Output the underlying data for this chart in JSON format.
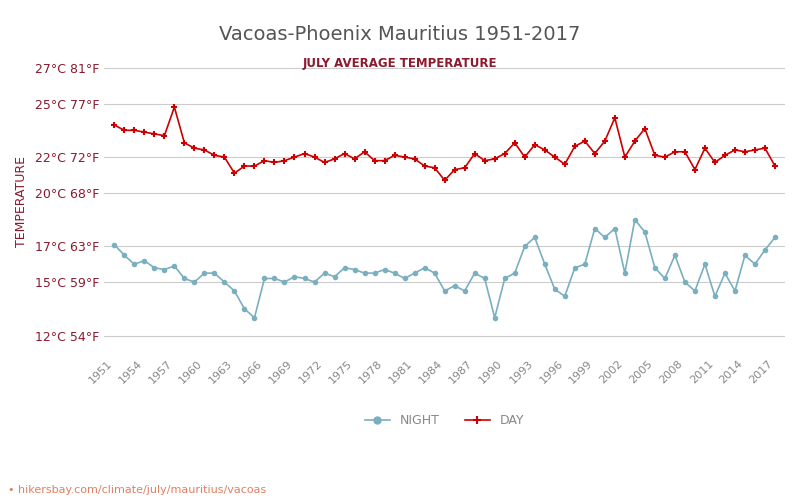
{
  "title": "Vacoas-Phoenix Mauritius 1951-2017",
  "subtitle": "JULY AVERAGE TEMPERATURE",
  "ylabel": "TEMPERATURE",
  "xlabel_url": "hikersbay.com/climate/july/mauritius/vacoas",
  "years": [
    1951,
    1952,
    1953,
    1954,
    1955,
    1956,
    1957,
    1958,
    1959,
    1960,
    1961,
    1962,
    1963,
    1964,
    1965,
    1966,
    1967,
    1968,
    1969,
    1970,
    1971,
    1972,
    1973,
    1974,
    1975,
    1976,
    1977,
    1978,
    1979,
    1980,
    1981,
    1982,
    1983,
    1984,
    1985,
    1986,
    1987,
    1988,
    1989,
    1990,
    1991,
    1992,
    1993,
    1994,
    1995,
    1996,
    1997,
    1998,
    1999,
    2000,
    2001,
    2002,
    2003,
    2004,
    2005,
    2006,
    2007,
    2008,
    2009,
    2010,
    2011,
    2012,
    2013,
    2014,
    2015,
    2016,
    2017
  ],
  "day_temps": [
    23.8,
    23.5,
    23.5,
    23.4,
    23.3,
    23.2,
    24.8,
    22.8,
    22.5,
    22.4,
    22.1,
    22.0,
    21.1,
    21.5,
    21.5,
    21.8,
    21.7,
    21.8,
    22.0,
    22.2,
    22.0,
    21.7,
    21.9,
    22.2,
    21.9,
    22.3,
    21.8,
    21.8,
    22.1,
    22.0,
    21.9,
    21.5,
    21.4,
    20.7,
    21.3,
    21.4,
    22.2,
    21.8,
    21.9,
    22.2,
    22.8,
    22.0,
    22.7,
    22.4,
    22.0,
    21.6,
    22.6,
    22.9,
    22.2,
    22.9,
    24.2,
    22.0,
    22.9,
    23.6,
    22.1,
    22.0,
    22.3,
    22.3,
    21.3,
    22.5,
    21.7,
    22.1,
    22.4,
    22.3,
    22.4,
    22.5,
    21.5
  ],
  "night_temps": [
    17.1,
    16.5,
    16.0,
    16.2,
    15.8,
    15.7,
    15.9,
    15.2,
    15.0,
    15.5,
    15.5,
    15.0,
    14.5,
    13.5,
    13.0,
    15.2,
    15.2,
    15.0,
    15.3,
    15.2,
    15.0,
    15.5,
    15.3,
    15.8,
    15.7,
    15.5,
    15.5,
    15.7,
    15.5,
    15.2,
    15.5,
    15.8,
    15.5,
    14.5,
    14.8,
    14.5,
    15.5,
    15.2,
    13.0,
    15.2,
    15.5,
    17.0,
    17.5,
    16.0,
    14.6,
    14.2,
    15.8,
    16.0,
    18.0,
    17.5,
    18.0,
    15.5,
    18.5,
    17.8,
    15.8,
    15.2,
    16.5,
    15.0,
    14.5,
    16.0,
    14.2,
    15.5,
    14.5,
    16.5,
    16.0,
    16.8,
    17.5
  ],
  "yticks_c": [
    12,
    15,
    17,
    20,
    22,
    25,
    27
  ],
  "yticks_labels": [
    "12°C 54°F",
    "15°C 59°F",
    "17°C 63°F",
    "20°C 68°F",
    "22°C 72°F",
    "25°C 77°F",
    "27°C 81°F"
  ],
  "xtick_years": [
    1951,
    1954,
    1957,
    1960,
    1963,
    1966,
    1969,
    1972,
    1975,
    1978,
    1981,
    1984,
    1987,
    1990,
    1993,
    1996,
    1999,
    2002,
    2005,
    2008,
    2011,
    2014,
    2017
  ],
  "day_color": "#cc0000",
  "night_color": "#7aafc0",
  "bg_color": "#ffffff",
  "grid_color": "#cccccc",
  "title_color": "#555555",
  "subtitle_color": "#8b1a2e",
  "axis_label_color": "#8b1a2e",
  "tick_label_color": "#8b1a2e",
  "url_color": "#e08060",
  "ylim_min": 11,
  "ylim_max": 28
}
